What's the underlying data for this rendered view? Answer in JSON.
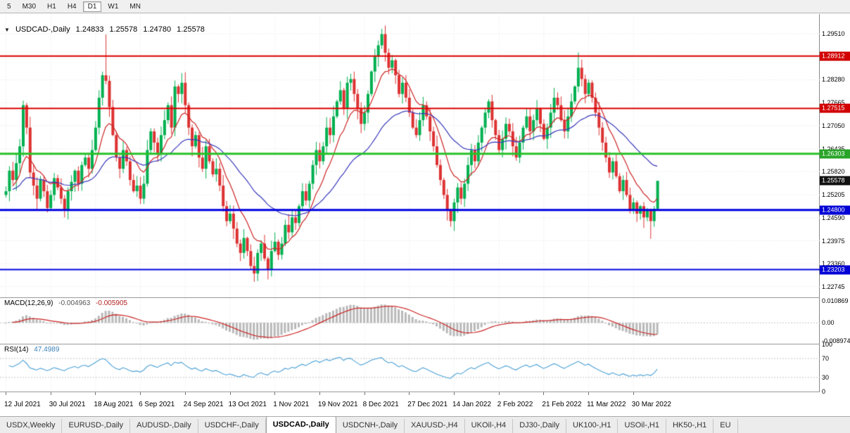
{
  "window": {
    "symbol": "USDCAD-,Daily",
    "open": "1.24833",
    "high": "1.25578",
    "low": "1.24780",
    "close": "1.25578"
  },
  "toolbar": {
    "timeframes": [
      {
        "label": "5",
        "active": false
      },
      {
        "label": "M30",
        "active": false
      },
      {
        "label": "H1",
        "active": false
      },
      {
        "label": "H4",
        "active": false
      },
      {
        "label": "D1",
        "active": true
      },
      {
        "label": "W1",
        "active": false
      },
      {
        "label": "MN",
        "active": false
      }
    ]
  },
  "price_axis": {
    "ticks": [
      "1.29510",
      "1.28280",
      "1.27665",
      "1.27050",
      "1.26435",
      "1.25820",
      "1.25205",
      "1.24590",
      "1.23975",
      "1.23360",
      "1.22745"
    ],
    "badges": [
      {
        "label": "1.28912",
        "value": 1.28912,
        "color": "#d20000",
        "kind": "resistance"
      },
      {
        "label": "1.27515",
        "value": 1.27515,
        "color": "#d20000",
        "kind": "resistance"
      },
      {
        "label": "1.26303",
        "value": 1.26303,
        "color": "#28a428",
        "kind": "level"
      },
      {
        "label": "1.25578",
        "value": 1.25578,
        "color": "#111111",
        "kind": "current"
      },
      {
        "label": "1.24800",
        "value": 1.248,
        "color": "#0000d6",
        "kind": "support"
      },
      {
        "label": "1.23203",
        "value": 1.23203,
        "color": "#0000d6",
        "kind": "support"
      }
    ]
  },
  "x_axis": {
    "labels": [
      "12 Jul 2021",
      "30 Jul 2021",
      "18 Aug 2021",
      "6 Sep 2021",
      "24 Sep 2021",
      "13 Oct 2021",
      "1 Nov 2021",
      "19 Nov 2021",
      "8 Dec 2021",
      "27 Dec 2021",
      "14 Jan 2022",
      "2 Feb 2022",
      "21 Feb 2022",
      "11 Mar 2022",
      "30 Mar 2022"
    ],
    "tick_candle_interval": 13
  },
  "macd": {
    "name": "MACD(12,26,9)",
    "value_main": "-0.004963",
    "value_signal": "-0.005905",
    "params": {
      "fast": 12,
      "slow": 26,
      "signal": 9
    },
    "axis": [
      {
        "label": "0.010869",
        "value": 0.010869
      },
      {
        "label": "0.00",
        "value": 0
      },
      {
        "label": "-0.008974",
        "value": -0.008974
      }
    ]
  },
  "rsi": {
    "name": "RSI(14)",
    "value": "47.4989",
    "period": 14,
    "levels": [
      70,
      30
    ],
    "axis": [
      {
        "label": "100",
        "value": 100
      },
      {
        "label": "70",
        "value": 70
      },
      {
        "label": "30",
        "value": 30
      },
      {
        "label": "0",
        "value": 0
      }
    ]
  },
  "tabs": [
    {
      "label": "USDX,Weekly"
    },
    {
      "label": "EURUSD-,Daily"
    },
    {
      "label": "AUDUSD-,Daily"
    },
    {
      "label": "USDCHF-,Daily"
    },
    {
      "label": "USDCAD-,Daily",
      "active": true
    },
    {
      "label": "USDCNH-,Daily"
    },
    {
      "label": "XAUUSD-,H4"
    },
    {
      "label": "UKOil-,H4"
    },
    {
      "label": "DJ30-,Daily"
    },
    {
      "label": "UK100-,H1"
    },
    {
      "label": "USOil-,H1"
    },
    {
      "label": "HK50-,H1"
    },
    {
      "label": "EU"
    }
  ],
  "colors": {
    "up": "#00b050",
    "down": "#dd3232",
    "ma_fast": "#cc2222",
    "ma_slow": "#3838bb",
    "macd_hist": "#b8b8b8",
    "macd_signal": "#cc2222",
    "rsi_line": "#4aa0d5",
    "grid": "#e4e4e4",
    "level_dash": "#c4c4c4"
  },
  "chart_data": {
    "type": "candlestick",
    "title": "USDCAD-,Daily",
    "symbol": "USDCAD",
    "timeframe": "Daily",
    "x_range": [
      "12 Jul 2021",
      "8 Apr 2022"
    ],
    "y_range": [
      1.2248,
      1.3004
    ],
    "current_price": 1.25578,
    "first_open": 1.252,
    "closes": [
      1.253,
      1.2585,
      1.256,
      1.2605,
      1.265,
      1.276,
      1.27,
      1.258,
      1.2545,
      1.251,
      1.256,
      1.253,
      1.2485,
      1.252,
      1.2565,
      1.254,
      1.251,
      1.248,
      1.253,
      1.2555,
      1.2585,
      1.255,
      1.26,
      1.262,
      1.259,
      1.264,
      1.27,
      1.278,
      1.284,
      1.2825,
      1.2755,
      1.268,
      1.262,
      1.259,
      1.264,
      1.261,
      1.256,
      1.253,
      1.2545,
      1.251,
      1.255,
      1.264,
      1.269,
      1.266,
      1.263,
      1.268,
      1.272,
      1.276,
      1.27,
      1.281,
      1.279,
      1.282,
      1.276,
      1.27,
      1.265,
      1.268,
      1.262,
      1.259,
      1.265,
      1.261,
      1.2575,
      1.259,
      1.2545,
      1.249,
      1.245,
      1.247,
      1.243,
      1.239,
      1.2365,
      1.2405,
      1.237,
      1.233,
      1.231,
      1.2365,
      1.239,
      1.235,
      1.232,
      1.237,
      1.2395,
      1.236,
      1.239,
      1.244,
      1.242,
      1.246,
      1.2445,
      1.249,
      1.253,
      1.2505,
      1.255,
      1.26,
      1.264,
      1.261,
      1.265,
      1.27,
      1.268,
      1.273,
      1.277,
      1.28,
      1.275,
      1.282,
      1.283,
      1.279,
      1.275,
      1.271,
      1.274,
      1.279,
      1.285,
      1.289,
      1.292,
      1.295,
      1.29,
      1.286,
      1.288,
      1.284,
      1.279,
      1.282,
      1.278,
      1.274,
      1.27,
      1.268,
      1.272,
      1.276,
      1.273,
      1.269,
      1.265,
      1.26,
      1.256,
      1.252,
      1.248,
      1.245,
      1.25,
      1.254,
      1.251,
      1.255,
      1.26,
      1.264,
      1.261,
      1.266,
      1.27,
      1.274,
      1.277,
      1.272,
      1.268,
      1.264,
      1.267,
      1.271,
      1.269,
      1.265,
      1.262,
      1.266,
      1.27,
      1.273,
      1.269,
      1.272,
      1.275,
      1.271,
      1.267,
      1.27,
      1.274,
      1.278,
      1.276,
      1.272,
      1.269,
      1.273,
      1.277,
      1.281,
      1.286,
      1.283,
      1.279,
      1.282,
      1.278,
      1.274,
      1.27,
      1.266,
      1.262,
      1.258,
      1.261,
      1.257,
      1.253,
      1.256,
      1.252,
      1.248,
      1.25,
      1.247,
      1.249,
      1.246,
      1.248,
      1.245,
      1.2483,
      1.25578
    ],
    "special_candles": {
      "29": {
        "high": 1.2949
      },
      "72": {
        "low": 1.2288
      },
      "109": {
        "high": 1.2964
      },
      "166": {
        "high": 1.2901
      },
      "187": {
        "low": 1.2403
      },
      "189": {
        "open": 1.24833,
        "high": 1.25578,
        "low": 1.2478,
        "close": 1.25578
      }
    },
    "horizontal_lines": [
      {
        "price": 1.28912,
        "color": "#dd0000",
        "width": 2
      },
      {
        "price": 1.27515,
        "color": "#dd0000",
        "width": 2
      },
      {
        "price": 1.26303,
        "color": "#28c028",
        "width": 3
      },
      {
        "price": 1.248,
        "color": "#0000e0",
        "width": 3
      },
      {
        "price": 1.23203,
        "color": "#0000e0",
        "width": 2
      }
    ],
    "moving_averages": [
      {
        "period": 10,
        "color": "#cc2222"
      },
      {
        "period": 34,
        "color": "#3838bb"
      }
    ]
  }
}
